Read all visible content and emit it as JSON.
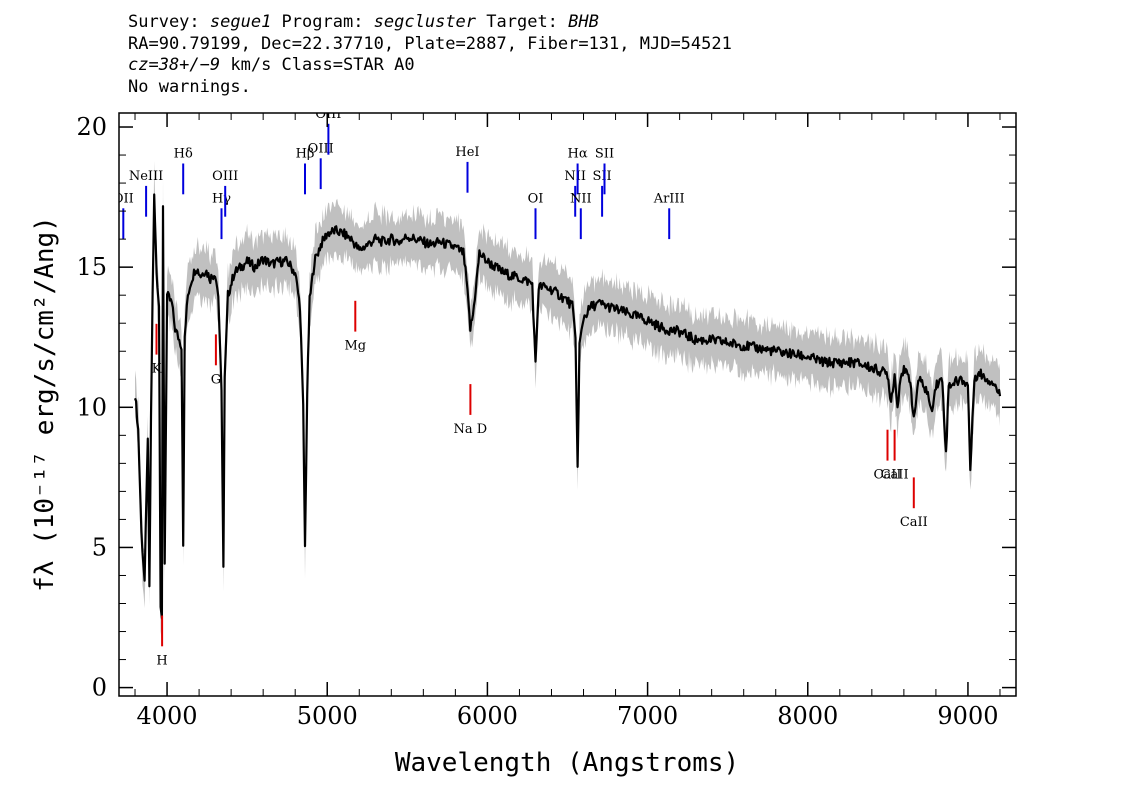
{
  "header": {
    "line1": {
      "k1": "Survey: ",
      "v1": "segue1",
      "k2": " Program: ",
      "v2": "segcluster",
      "k3": " Target: ",
      "v3": "BHB"
    },
    "line2": "RA=90.79199, Dec=22.37710, Plate=2887, Fiber=131, MJD=54521",
    "line3": {
      "cz": "cz=38+/−9",
      "rest": " km/s Class=STAR A0"
    },
    "line4": "No warnings."
  },
  "colors": {
    "emission": "#0000dd",
    "absorption": "#dd0000",
    "spectrum": "#000000",
    "error_band": "#c0c0c0"
  },
  "chart_data": {
    "type": "line",
    "title": "",
    "xlabel": "Wavelength (Angstroms)",
    "ylabel": "fλ (10⁻¹⁷ erg/s/cm²/Ang)",
    "xlim": [
      3700,
      9300
    ],
    "ylim": [
      -0.3,
      20.5
    ],
    "x_ticks": [
      4000,
      5000,
      6000,
      7000,
      8000,
      9000
    ],
    "y_ticks": [
      0,
      5,
      10,
      15,
      20
    ],
    "grid": false,
    "legend": "none",
    "series": [
      {
        "x": [
          3800,
          3820,
          3840,
          3860,
          3880,
          3890,
          3900,
          3910,
          3920,
          3935,
          3950,
          3960,
          3968,
          3975,
          3985,
          4000,
          4030,
          4050,
          4070,
          4090,
          4101,
          4110,
          4130,
          4150,
          4180,
          4210,
          4240,
          4270,
          4300,
          4320,
          4340,
          4352,
          4360,
          4380,
          4420,
          4460,
          4500,
          4550,
          4600,
          4650,
          4700,
          4750,
          4800,
          4830,
          4850,
          4861,
          4875,
          4890,
          4920,
          4960,
          5000,
          5050,
          5100,
          5150,
          5200,
          5250,
          5300,
          5350,
          5400,
          5450,
          5500,
          5550,
          5600,
          5650,
          5700,
          5750,
          5800,
          5850,
          5870,
          5893,
          5910,
          5950,
          6000,
          6050,
          6100,
          6150,
          6200,
          6250,
          6280,
          6300,
          6320,
          6350,
          6400,
          6450,
          6500,
          6530,
          6550,
          6563,
          6575,
          6600,
          6650,
          6700,
          6750,
          6800,
          6850,
          6900,
          6950,
          7000,
          7100,
          7200,
          7300,
          7400,
          7500,
          7600,
          7700,
          7800,
          7900,
          8000,
          8100,
          8200,
          8300,
          8400,
          8450,
          8498,
          8520,
          8542,
          8560,
          8580,
          8600,
          8640,
          8662,
          8690,
          8720,
          8750,
          8770,
          8800,
          8840,
          8863,
          8880,
          8920,
          8960,
          9000,
          9015,
          9040,
          9080,
          9120,
          9160,
          9200
        ],
        "values": [
          10.5,
          9.2,
          5.5,
          3.8,
          9.0,
          3.5,
          9.5,
          14.0,
          17.5,
          14.8,
          13.6,
          3.0,
          2.5,
          17.0,
          4.5,
          14.0,
          13.7,
          12.8,
          12.5,
          12.2,
          5.2,
          12.5,
          14.0,
          14.5,
          15.0,
          14.7,
          14.9,
          14.6,
          14.8,
          14.0,
          10.5,
          4.3,
          11.0,
          14.0,
          14.8,
          15.0,
          15.2,
          15.0,
          15.3,
          15.1,
          15.2,
          15.2,
          14.8,
          13.6,
          10.0,
          5.0,
          10.5,
          13.8,
          15.2,
          15.8,
          16.2,
          16.3,
          16.2,
          16.0,
          15.6,
          15.8,
          16.0,
          15.9,
          16.0,
          15.9,
          16.1,
          16.0,
          15.9,
          15.8,
          15.9,
          15.8,
          15.7,
          15.5,
          14.5,
          12.8,
          13.3,
          15.5,
          15.2,
          15.0,
          14.8,
          14.7,
          14.6,
          14.5,
          14.4,
          11.5,
          14.3,
          14.3,
          14.2,
          14.0,
          13.8,
          13.6,
          12.5,
          7.8,
          12.2,
          13.2,
          13.6,
          13.7,
          13.6,
          13.5,
          13.4,
          13.3,
          13.2,
          13.1,
          12.8,
          12.7,
          12.4,
          12.4,
          12.3,
          12.2,
          12.1,
          12.0,
          11.9,
          11.8,
          11.6,
          11.6,
          11.6,
          11.4,
          11.3,
          11.2,
          10.2,
          11.2,
          10.0,
          11.2,
          11.3,
          11.0,
          9.5,
          11.0,
          10.8,
          10.5,
          9.8,
          10.8,
          11.0,
          8.3,
          10.8,
          10.9,
          11.0,
          10.8,
          7.8,
          11.1,
          11.2,
          11.0,
          10.9,
          10.4
        ]
      }
    ],
    "error_band": 0.6,
    "lines": [
      {
        "label": "OII",
        "wave": 3727,
        "kind": "emission"
      },
      {
        "label": "NeIII",
        "wave": 3869,
        "kind": "emission"
      },
      {
        "label": "Hδ",
        "wave": 4101,
        "kind": "emission"
      },
      {
        "label": "Hγ",
        "wave": 4340,
        "kind": "emission"
      },
      {
        "label": "OIII",
        "wave": 4363,
        "kind": "emission"
      },
      {
        "label": "Hβ",
        "wave": 4861,
        "kind": "emission"
      },
      {
        "label": "OIII",
        "wave": 4959,
        "kind": "emission"
      },
      {
        "label": "OIII",
        "wave": 5007,
        "kind": "emission"
      },
      {
        "label": "HeI",
        "wave": 5876,
        "kind": "emission"
      },
      {
        "label": "OI",
        "wave": 6300,
        "kind": "emission"
      },
      {
        "label": "NII",
        "wave": 6548,
        "kind": "emission"
      },
      {
        "label": "Hα",
        "wave": 6563,
        "kind": "emission"
      },
      {
        "label": "NII",
        "wave": 6583,
        "kind": "emission"
      },
      {
        "label": "SII",
        "wave": 6716,
        "kind": "emission"
      },
      {
        "label": "SII",
        "wave": 6731,
        "kind": "emission"
      },
      {
        "label": "ArIII",
        "wave": 7135,
        "kind": "emission"
      },
      {
        "label": "K",
        "wave": 3934,
        "kind": "absorption"
      },
      {
        "label": "H",
        "wave": 3969,
        "kind": "absorption"
      },
      {
        "label": "G",
        "wave": 4305,
        "kind": "absorption"
      },
      {
        "label": "Mg",
        "wave": 5175,
        "kind": "absorption"
      },
      {
        "label": "Na D",
        "wave": 5894,
        "kind": "absorption"
      },
      {
        "label": "CaII",
        "wave": 8498,
        "kind": "absorption"
      },
      {
        "label": "CaII",
        "wave": 8542,
        "kind": "absorption"
      },
      {
        "label": "CaII",
        "wave": 8662,
        "kind": "absorption"
      }
    ]
  }
}
